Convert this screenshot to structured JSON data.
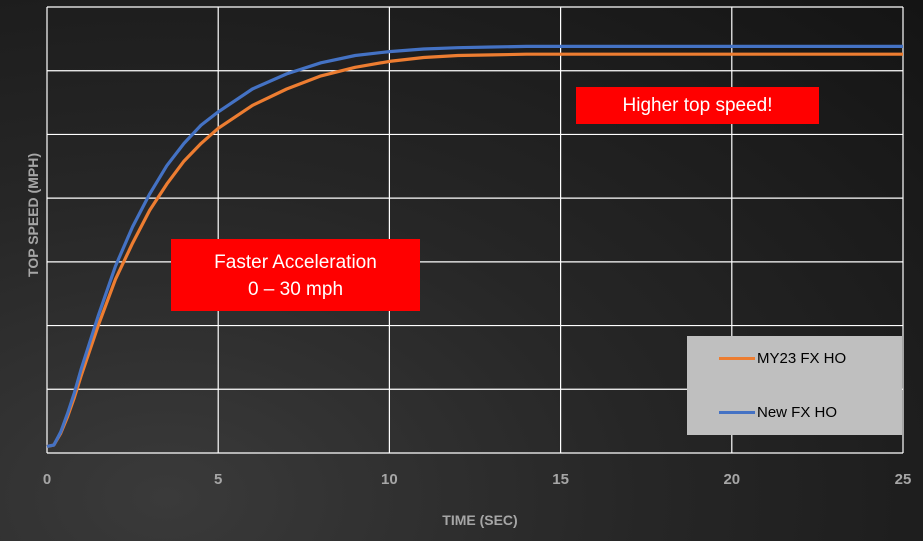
{
  "colors": {
    "my23": "#ed7d31",
    "new": "#4472c4",
    "callout_bg": "#ff0000",
    "grid": "#ffffff",
    "legend_bg": "#bfbfbf"
  },
  "annotations": {
    "acceleration_line1": "Faster Acceleration",
    "acceleration_line2": "0 – 30 mph",
    "top_speed": "Higher top speed!"
  },
  "legend": {
    "items": [
      {
        "label": "MY23 FX HO",
        "color": "#ed7d31"
      },
      {
        "label": "New FX HO",
        "color": "#4472c4"
      }
    ]
  },
  "chart_data": {
    "type": "line",
    "xlabel": "TIME (SEC)",
    "ylabel": "TOP SPEED (MPH)",
    "xlim": [
      0,
      25
    ],
    "ylim": [
      0,
      6.8
    ],
    "x_ticks": [
      "0",
      "5",
      "10",
      "15",
      "20",
      "25"
    ],
    "y_tick_labels": "none",
    "grid": true,
    "legend_position": "bottom-right",
    "series": [
      {
        "name": "MY23 FX HO",
        "color": "#ed7d31",
        "x": [
          0,
          0.2,
          0.4,
          0.6,
          0.8,
          1.0,
          1.5,
          2.0,
          2.5,
          3.0,
          3.5,
          4.0,
          4.5,
          5.0,
          6.0,
          7.0,
          8.0,
          9.0,
          10.0,
          11.0,
          12.0,
          13.0,
          14.0,
          15.0,
          17.5,
          20.0,
          22.5,
          25.0
        ],
        "y": [
          0.1,
          0.12,
          0.3,
          0.55,
          0.85,
          1.18,
          1.95,
          2.65,
          3.2,
          3.7,
          4.1,
          4.45,
          4.72,
          4.95,
          5.3,
          5.55,
          5.75,
          5.88,
          5.97,
          6.03,
          6.06,
          6.07,
          6.08,
          6.08,
          6.08,
          6.08,
          6.08,
          6.08
        ]
      },
      {
        "name": "New FX HO",
        "color": "#4472c4",
        "x": [
          0,
          0.2,
          0.4,
          0.6,
          0.8,
          1.0,
          1.5,
          2.0,
          2.5,
          3.0,
          3.5,
          4.0,
          4.5,
          5.0,
          6.0,
          7.0,
          8.0,
          9.0,
          10.0,
          11.0,
          12.0,
          13.0,
          14.0,
          15.0,
          17.5,
          20.0,
          22.5,
          25.0
        ],
        "y": [
          0.1,
          0.12,
          0.32,
          0.6,
          0.92,
          1.28,
          2.1,
          2.85,
          3.45,
          3.95,
          4.38,
          4.72,
          5.0,
          5.2,
          5.55,
          5.78,
          5.95,
          6.06,
          6.12,
          6.16,
          6.18,
          6.19,
          6.2,
          6.2,
          6.2,
          6.2,
          6.2,
          6.2
        ]
      }
    ]
  }
}
